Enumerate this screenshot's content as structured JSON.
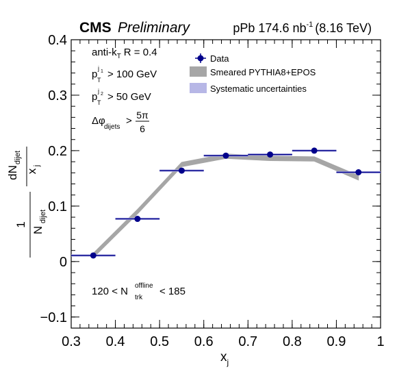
{
  "header": {
    "cms": "CMS",
    "preliminary": "Preliminary",
    "lumi_prefix": "pPb 174.6 nb",
    "lumi_exp": "-1",
    "lumi_energy": "(8.16 TeV)"
  },
  "annotations": {
    "algo_main": "anti-k",
    "algo_sub": "T",
    "algo_rest": "R = 0.4",
    "pt1_main": "p",
    "pt1_sup": "j",
    "pt1_supsub": "1",
    "pt1_sub": "T",
    "pt1_rest": "> 100 GeV",
    "pt2_main": "p",
    "pt2_sup": "j",
    "pt2_supsub": "2",
    "pt2_sub": "T",
    "pt2_rest": "> 50 GeV",
    "dphi_main": "Δφ",
    "dphi_sub": "dijets",
    "dphi_gt": ">",
    "dphi_num": "5π",
    "dphi_den": "6",
    "mult_left": "120 < N",
    "mult_sup": "offline",
    "mult_sub": "trk",
    "mult_right": "< 185"
  },
  "legend": {
    "data": "Data",
    "mc": "Smeared PYTHIA8+EPOS",
    "syst": "Systematic uncertainties"
  },
  "axes": {
    "xlabel_main": "x",
    "xlabel_sub": "j",
    "ylabel_one": "1",
    "ylabel_N": "N",
    "ylabel_N_sub": "dijet",
    "ylabel_dN": "dN",
    "ylabel_dN_sub": "dijet",
    "ylabel_x": "x",
    "ylabel_x_sub": "j"
  },
  "colors": {
    "data": "#00008b",
    "mc": "#a6a6a6",
    "syst": "#b7b7e6"
  },
  "chart_data": {
    "type": "scatter",
    "xlim": [
      0.3,
      1.0
    ],
    "ylim": [
      -0.12,
      0.4
    ],
    "xticks": [
      "0.3",
      "0.4",
      "0.5",
      "0.6",
      "0.7",
      "0.8",
      "0.9",
      "1"
    ],
    "xtick_values": [
      0.3,
      0.4,
      0.5,
      0.6,
      0.7,
      0.8,
      0.9,
      1.0
    ],
    "yticks": [
      "−0.1",
      "0",
      "0.1",
      "0.2",
      "0.3",
      "0.4"
    ],
    "ytick_values": [
      -0.1,
      0,
      0.1,
      0.2,
      0.3,
      0.4
    ],
    "grid": false,
    "legend_position": "top-right",
    "series": [
      {
        "name": "Data",
        "x": [
          0.35,
          0.45,
          0.55,
          0.65,
          0.75,
          0.85,
          0.95
        ],
        "y": [
          0.011,
          0.077,
          0.164,
          0.191,
          0.193,
          0.2,
          0.161
        ],
        "x_bin_width": 0.1,
        "syst_half_height": 0.002
      },
      {
        "name": "Smeared PYTHIA8+EPOS",
        "x": [
          0.35,
          0.45,
          0.55,
          0.65,
          0.75,
          0.85,
          0.95
        ],
        "y": [
          0.011,
          0.09,
          0.175,
          0.19,
          0.186,
          0.185,
          0.151
        ],
        "band_half_height": 0.004
      }
    ]
  }
}
